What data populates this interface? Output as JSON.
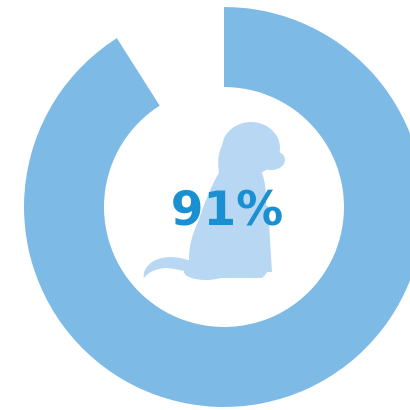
{
  "chart_data": {
    "type": "donut",
    "value": 91,
    "max": 100,
    "label": "91%",
    "colors": {
      "ring": "#7dbbe6",
      "label": "#1a8fd1",
      "dog": "#b8d7f2",
      "background": "#ffffff"
    }
  },
  "center_icon": "sitting-puppy-silhouette"
}
